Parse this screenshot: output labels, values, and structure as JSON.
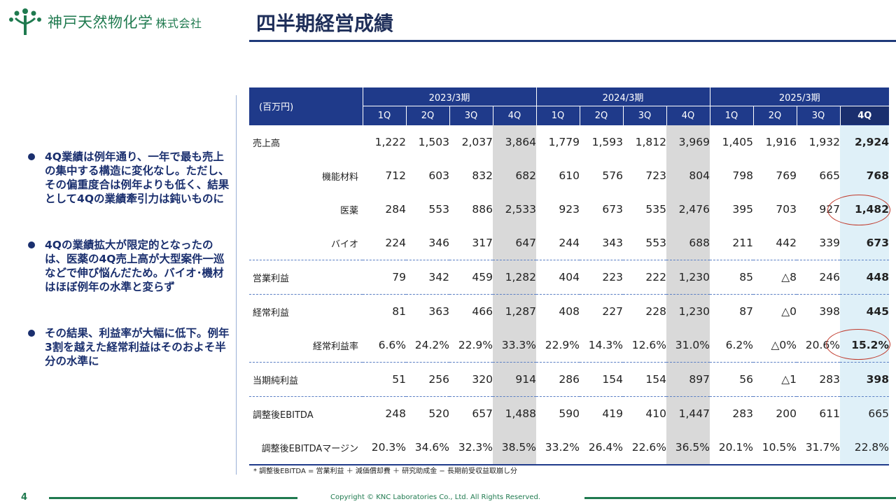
{
  "company": {
    "name": "神戸天然物化学",
    "suffix": "株式会社"
  },
  "title": "四半期経営成績",
  "bullets": [
    "4Q業績は例年通り、一年で最も売上の集中する構造に変化なし。ただし、その偏重度合は例年よりも低く、結果として4Qの業績牽引力は鈍いものに",
    "4Qの業績拡大が限定的となったのは、医薬の4Q売上高が大型案件一巡などで伸び悩んだため。バイオ･機材はほぼ例年の水準と変らず",
    "その結果、利益率が大幅に低下。例年3割を越えた経常利益はそのおよそ半分の水準に"
  ],
  "table": {
    "unit": "(百万円)",
    "years": [
      "2023/3期",
      "2024/3期",
      "2025/3期"
    ],
    "quarters": [
      "1Q",
      "2Q",
      "3Q",
      "4Q",
      "1Q",
      "2Q",
      "3Q",
      "4Q",
      "1Q",
      "2Q",
      "3Q",
      "4Q"
    ],
    "rows": [
      {
        "label": "売上高",
        "values": [
          "1,222",
          "1,503",
          "2,037",
          "3,864",
          "1,779",
          "1,593",
          "1,812",
          "3,969",
          "1,405",
          "1,916",
          "1,932",
          "2,924"
        ]
      },
      {
        "label": "機能材料",
        "values": [
          "712",
          "603",
          "832",
          "682",
          "610",
          "576",
          "723",
          "804",
          "798",
          "769",
          "665",
          "768"
        ]
      },
      {
        "label": "医薬",
        "values": [
          "284",
          "553",
          "886",
          "2,533",
          "923",
          "673",
          "535",
          "2,476",
          "395",
          "703",
          "927",
          "1,482"
        ]
      },
      {
        "label": "バイオ",
        "values": [
          "224",
          "346",
          "317",
          "647",
          "244",
          "343",
          "553",
          "688",
          "211",
          "442",
          "339",
          "673"
        ]
      },
      {
        "label": "営業利益",
        "values": [
          "79",
          "342",
          "459",
          "1,282",
          "404",
          "223",
          "222",
          "1,230",
          "85",
          "△8",
          "246",
          "448"
        ]
      },
      {
        "label": "経常利益",
        "values": [
          "81",
          "363",
          "466",
          "1,287",
          "408",
          "227",
          "228",
          "1,230",
          "87",
          "△0",
          "398",
          "445"
        ]
      },
      {
        "label": "経常利益率",
        "values": [
          "6.6%",
          "24.2%",
          "22.9%",
          "33.3%",
          "22.9%",
          "14.3%",
          "12.6%",
          "31.0%",
          "6.2%",
          "△0%",
          "20.6%",
          "15.2%"
        ]
      },
      {
        "label": "当期純利益",
        "values": [
          "51",
          "256",
          "320",
          "914",
          "286",
          "154",
          "154",
          "897",
          "56",
          "△1",
          "283",
          "398"
        ]
      },
      {
        "label": "調整後EBITDA",
        "values": [
          "248",
          "520",
          "657",
          "1,488",
          "590",
          "419",
          "410",
          "1,447",
          "283",
          "200",
          "611",
          "665"
        ]
      },
      {
        "label": "調整後EBITDAマージン",
        "values": [
          "20.3%",
          "34.6%",
          "32.3%",
          "38.5%",
          "33.2%",
          "26.4%",
          "22.6%",
          "36.5%",
          "20.1%",
          "10.5%",
          "31.7%",
          "22.8%"
        ]
      }
    ],
    "footnote": "* 調整後EBITDA = 営業利益 ＋ 減価償却費 ＋ 研究助成金 − 長期前受収益取崩し分"
  },
  "footer": {
    "page": "4",
    "copyright": "Copyright © KNC Laboratories Co., Ltd. All Rights Reserved."
  },
  "colors": {
    "navy": "#1f3a8a",
    "green": "#1f7a4f",
    "highlight": "#dff0f8",
    "shade": "#d9d9d9",
    "circle": "#c0392b"
  }
}
